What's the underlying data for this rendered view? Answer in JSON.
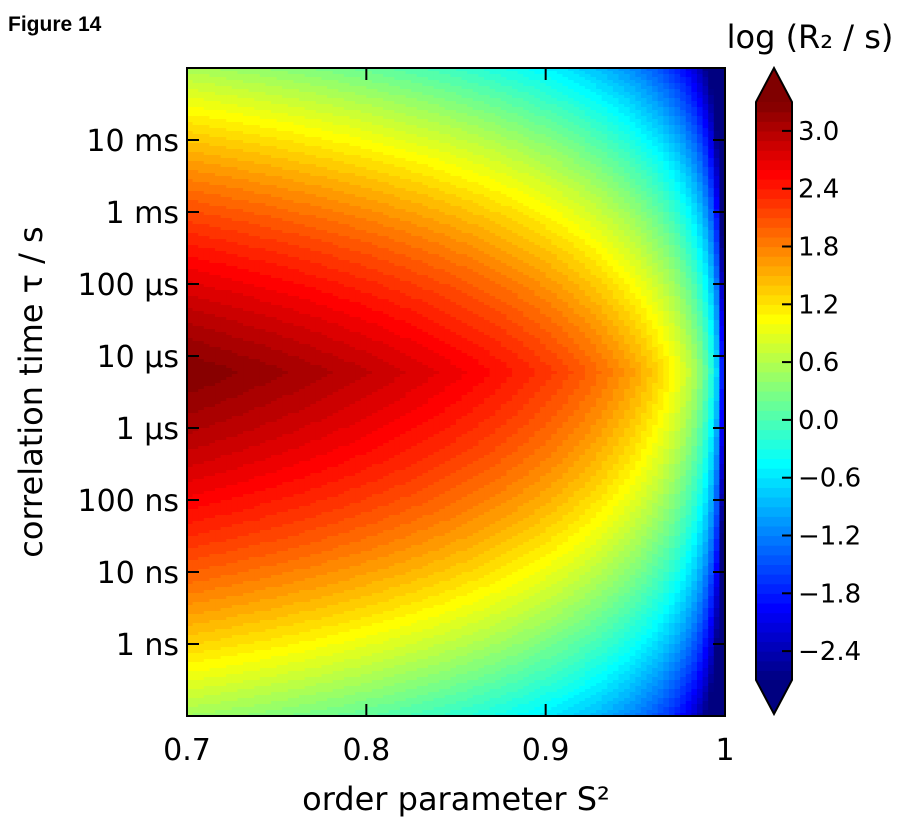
{
  "figure_label": "Figure 14",
  "chart_data": {
    "type": "heatmap",
    "title": "",
    "xlabel": "order parameter S²",
    "ylabel": "correlation time τ / s",
    "xlim": [
      0.7,
      1.0
    ],
    "x_ticks": [
      {
        "value": 0.7,
        "label": "0.7"
      },
      {
        "value": 0.8,
        "label": "0.8"
      },
      {
        "value": 0.9,
        "label": "0.9"
      },
      {
        "value": 1.0,
        "label": "1"
      }
    ],
    "y_scale": "log",
    "ylim_seconds": [
      1e-10,
      0.1
    ],
    "y_ticks": [
      {
        "value": 1e-09,
        "label": "1 ns"
      },
      {
        "value": 1e-08,
        "label": "10 ns"
      },
      {
        "value": 1e-07,
        "label": "100 ns"
      },
      {
        "value": 1e-06,
        "label": "1 µs"
      },
      {
        "value": 1e-05,
        "label": "10 µs"
      },
      {
        "value": 0.0001,
        "label": "100 µs"
      },
      {
        "value": 0.001,
        "label": "1 ms"
      },
      {
        "value": 0.01,
        "label": "10 ms"
      }
    ],
    "colormap": "jet",
    "colorbar": {
      "title": "log (R₂ / s)",
      "range": [
        -2.7,
        3.3
      ],
      "extend": "both",
      "tick_values": [
        -2.4,
        -1.8,
        -1.2,
        -0.6,
        0.0,
        0.6,
        1.2,
        1.8,
        2.4,
        3.0
      ],
      "tick_labels": [
        "−2.4",
        "−1.8",
        "−1.2",
        "−0.6",
        "0.0",
        "0.6",
        "1.2",
        "1.8",
        "2.4",
        "3.0"
      ]
    },
    "peak": {
      "s2": 0.7,
      "tau_seconds": 6e-06,
      "log_r2": 3.3
    },
    "grid": false,
    "grid_samples": [
      {
        "s2": 0.7,
        "tau_seconds": 6e-06,
        "log_r2": 3.3
      },
      {
        "s2": 0.9,
        "tau_seconds": 6e-06,
        "log_r2": 2.5
      },
      {
        "s2": 0.98,
        "tau_seconds": 6e-06,
        "log_r2": 1.3
      },
      {
        "s2": 0.7,
        "tau_seconds": 0.001,
        "log_r2": 1.5
      },
      {
        "s2": 0.7,
        "tau_seconds": 1e-09,
        "log_r2": 0.4
      },
      {
        "s2": 0.7,
        "tau_seconds": 0.1,
        "log_r2": -0.2
      },
      {
        "s2": 0.7,
        "tau_seconds": 1e-10,
        "log_r2": -0.5
      },
      {
        "s2": 0.995,
        "tau_seconds": 0.01,
        "log_r2": -2.3
      }
    ]
  }
}
